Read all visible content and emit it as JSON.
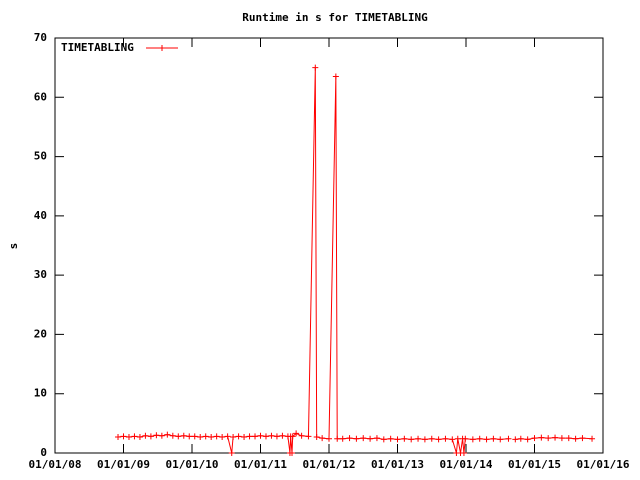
{
  "chart_data": {
    "type": "line",
    "title": "Runtime in s for TIMETABLING",
    "y_label": "s",
    "xlim": [
      2008,
      2016
    ],
    "xticks": [
      {
        "value": 2008,
        "label": "01/01/08"
      },
      {
        "value": 2009,
        "label": "01/01/09"
      },
      {
        "value": 2010,
        "label": "01/01/10"
      },
      {
        "value": 2011,
        "label": "01/01/11"
      },
      {
        "value": 2012,
        "label": "01/01/12"
      },
      {
        "value": 2013,
        "label": "01/01/13"
      },
      {
        "value": 2014,
        "label": "01/01/14"
      },
      {
        "value": 2015,
        "label": "01/01/15"
      },
      {
        "value": 2016,
        "label": "01/01/16"
      }
    ],
    "ylim": [
      0,
      70
    ],
    "yticks": [
      0,
      10,
      20,
      30,
      40,
      50,
      60,
      70
    ],
    "legend": "top-left",
    "x": [
      2008.92,
      2009.0,
      2009.08,
      2009.16,
      2009.24,
      2009.32,
      2009.4,
      2009.48,
      2009.56,
      2009.64,
      2009.72,
      2009.8,
      2009.88,
      2009.96,
      2010.04,
      2010.12,
      2010.2,
      2010.28,
      2010.36,
      2010.44,
      2010.52,
      2010.58,
      2010.6,
      2010.68,
      2010.76,
      2010.84,
      2010.92,
      2011.0,
      2011.08,
      2011.16,
      2011.24,
      2011.32,
      2011.4,
      2011.43,
      2011.44,
      2011.46,
      2011.47,
      2011.52,
      2011.6,
      2011.7,
      2011.8,
      2011.82,
      2011.9,
      2012.0,
      2012.1,
      2012.12,
      2012.2,
      2012.3,
      2012.4,
      2012.5,
      2012.6,
      2012.7,
      2012.8,
      2012.9,
      2013.0,
      2013.1,
      2013.2,
      2013.3,
      2013.4,
      2013.5,
      2013.6,
      2013.7,
      2013.8,
      2013.86,
      2013.88,
      2013.92,
      2013.95,
      2013.97,
      2013.99,
      2014.1,
      2014.2,
      2014.3,
      2014.4,
      2014.5,
      2014.62,
      2014.67,
      2014.72,
      2014.8,
      2014.9,
      2015.0,
      2015.1,
      2015.2,
      2015.3,
      2015.4,
      2015.5,
      2015.6,
      2015.7,
      2015.84
    ],
    "series": [
      {
        "name": "TIMETABLING",
        "color": "#ff0000",
        "values": [
          2.7,
          2.8,
          2.7,
          2.8,
          2.7,
          2.9,
          2.8,
          3.0,
          2.9,
          3.1,
          2.9,
          2.8,
          2.9,
          2.8,
          2.8,
          2.7,
          2.8,
          2.7,
          2.8,
          2.7,
          2.8,
          0,
          2.7,
          2.8,
          2.7,
          2.8,
          2.8,
          2.9,
          2.8,
          2.9,
          2.8,
          2.9,
          2.8,
          0,
          2.8,
          0,
          2.8,
          3.3,
          2.9,
          2.8,
          65,
          2.7,
          2.5,
          2.4,
          63.5,
          2.4,
          2.4,
          2.5,
          2.4,
          2.5,
          2.4,
          2.5,
          2.3,
          2.4,
          2.3,
          2.4,
          2.3,
          2.4,
          2.3,
          2.4,
          2.3,
          2.4,
          2.3,
          0,
          2.4,
          0,
          2.4,
          0,
          2.4,
          2.3,
          2.4,
          2.3,
          2.4,
          2.3,
          2.4,
          null,
          2.3,
          2.4,
          2.3,
          2.5,
          2.6,
          2.5,
          2.6,
          2.5,
          2.5,
          2.4,
          2.5,
          2.4
        ]
      }
    ]
  }
}
